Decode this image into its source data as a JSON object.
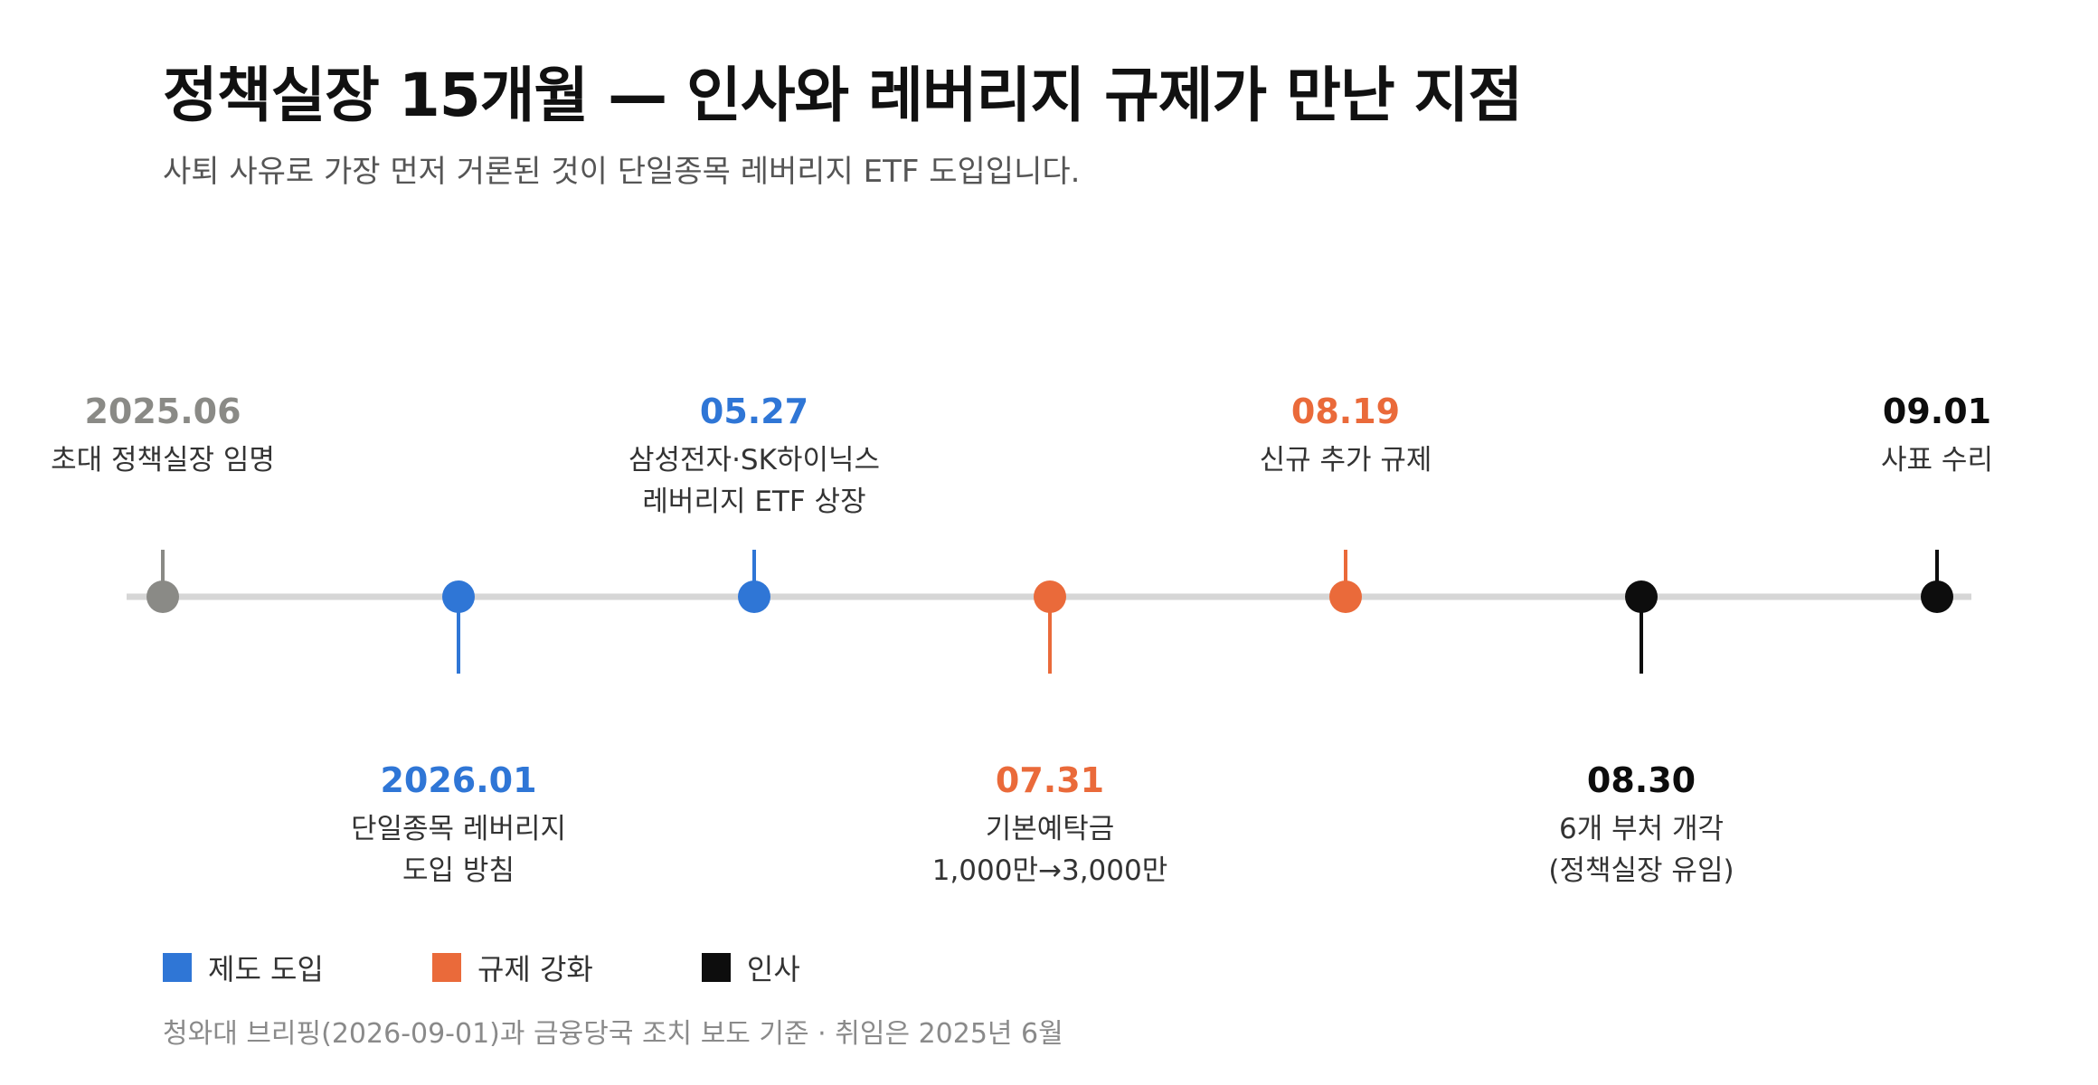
{
  "header": {
    "title": "정책실장 15개월 — 인사와 레버리지 규제가 만난 지점",
    "subtitle": "사퇴 사유로 가장 먼저 거론된 것이 단일종목 레버리지 ETF 도입입니다."
  },
  "colors": {
    "gray": "#8a8a86",
    "blue": "#2f76d6",
    "orange": "#ea6a3a",
    "black": "#0d0d0d",
    "track": "#d6d6d6"
  },
  "events": [
    {
      "date": "2025.06",
      "desc": [
        "초대 정책실장 임명"
      ],
      "category": "start",
      "side": "top"
    },
    {
      "date": "2026.01",
      "desc": [
        "단일종목 레버리지",
        "도입 방침"
      ],
      "category": "policy",
      "side": "bottom"
    },
    {
      "date": "05.27",
      "desc": [
        "삼성전자·SK하이닉스",
        "레버리지 ETF 상장"
      ],
      "category": "policy",
      "side": "top"
    },
    {
      "date": "07.31",
      "desc": [
        "기본예탁금",
        "1,000만→3,000만"
      ],
      "category": "regulation",
      "side": "bottom"
    },
    {
      "date": "08.19",
      "desc": [
        "신규 추가 규제"
      ],
      "category": "regulation",
      "side": "top"
    },
    {
      "date": "08.30",
      "desc": [
        "6개 부처 개각",
        "(정책실장 유임)"
      ],
      "category": "personnel",
      "side": "bottom"
    },
    {
      "date": "09.01",
      "desc": [
        "사표 수리"
      ],
      "category": "personnel",
      "side": "top"
    }
  ],
  "legend": [
    {
      "label": "제도 도입",
      "category": "policy"
    },
    {
      "label": "규제 강화",
      "category": "regulation"
    },
    {
      "label": "인사",
      "category": "personnel"
    }
  ],
  "source": "청와대 브리핑(2026-09-01)과 금융당국 조치 보도 기준 · 취임은 2025년 6월"
}
